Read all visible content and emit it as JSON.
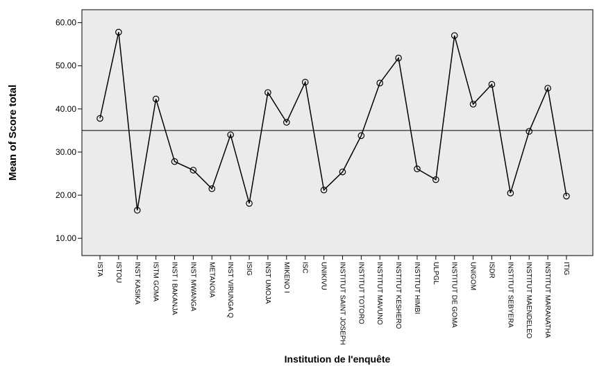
{
  "chart_data": {
    "type": "line",
    "xlabel": "Institution de l'enquête",
    "ylabel": "Mean of Score total",
    "ylim": [
      6.0,
      63.0
    ],
    "yticks": [
      10,
      20,
      30,
      40,
      50,
      60
    ],
    "ytick_labels": [
      "10.00",
      "20.00",
      "30.00",
      "40.00",
      "50.00",
      "60.00"
    ],
    "reference_line": 35.0,
    "markers": "open-circle",
    "colors": {
      "plot_bg": "#ebebeb",
      "line": "#000000",
      "axis": "#000000"
    },
    "categories": [
      "ISTA",
      "ISTOU",
      "INST KASIKA",
      "ISTM GOMA",
      "INST I BAKANJA",
      "INST MWANGA",
      "METANOIA",
      "INST VIRUNGA Q",
      "ISIG",
      "INST UMOJA",
      "MIKENO I",
      "ISC",
      "UNIKIVU",
      "INSTITUT SAINT JOSEPH",
      "INSTITUT TOTORO",
      "INSTITUT MAVUNO",
      "INSTITUT KESHERO",
      "INSTITUT HIMBI",
      "ULPGL",
      "INSTITUT DE GOMA",
      "UNIGOM",
      "ISDR",
      "INSTITUT SEBYERA",
      "INSTITUT MAENDELEO",
      "INSTITUT MARANATHA",
      "ITIG"
    ],
    "values": [
      37.8,
      57.8,
      16.5,
      42.3,
      27.8,
      25.8,
      21.5,
      34.0,
      18.1,
      43.8,
      36.9,
      46.2,
      21.2,
      25.4,
      33.8,
      46.0,
      51.8,
      26.1,
      23.6,
      57.0,
      41.1,
      45.7,
      20.5,
      34.8,
      44.8,
      19.8
    ]
  }
}
